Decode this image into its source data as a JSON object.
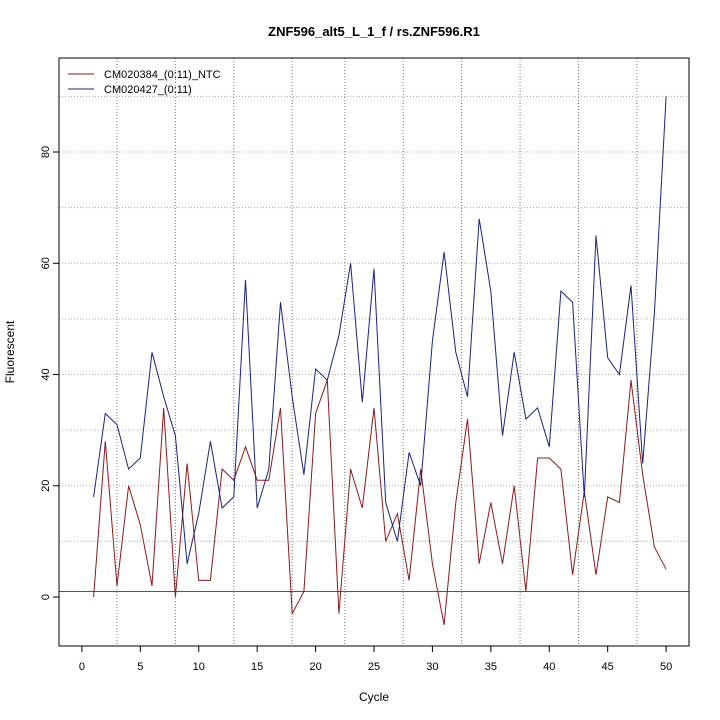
{
  "chart_data": {
    "type": "line",
    "title": "ZNF596_alt5_L_1_f / rs.ZNF596.R1",
    "xlabel": "Cycle",
    "ylabel": "Fluorescent",
    "xlim": [
      -1.96,
      51.96
    ],
    "ylim": [
      -8.8,
      96.9
    ],
    "x_ticks": [
      0,
      5,
      10,
      15,
      20,
      25,
      30,
      35,
      40,
      45,
      50
    ],
    "y_ticks": [
      0,
      20,
      40,
      60,
      80
    ],
    "h_gridlines": [
      10,
      20,
      30,
      40,
      50,
      60,
      70,
      80,
      90
    ],
    "v_gridlines": [
      3,
      8,
      13,
      18,
      22.5,
      27.5,
      32.5,
      37.5,
      42.5,
      47.5
    ],
    "threshold": {
      "value": 1,
      "color": "#cc2222"
    },
    "legend_position": "top-left",
    "series": [
      {
        "name": "CM020384_(0:11)_NTC",
        "color": "#8b1a1a",
        "x": [
          1,
          2,
          3,
          4,
          5,
          6,
          7,
          8,
          9,
          10,
          11,
          12,
          13,
          14,
          15,
          16,
          17,
          18,
          19,
          20,
          21,
          22,
          23,
          24,
          25,
          26,
          27,
          28,
          29,
          30,
          31,
          32,
          33,
          34,
          35,
          36,
          37,
          38,
          39,
          40,
          41,
          42,
          43,
          44,
          45,
          46,
          47,
          48,
          49,
          50
        ],
        "values": [
          0,
          28,
          2,
          20,
          13,
          2,
          34,
          0,
          24,
          3,
          3,
          23,
          21,
          27,
          21,
          21,
          34,
          -3,
          1,
          33,
          39,
          -3,
          23,
          16,
          34,
          10,
          15,
          3,
          23,
          6,
          -5,
          17,
          32,
          6,
          17,
          6,
          20,
          1,
          25,
          25,
          23,
          4,
          19,
          4,
          18,
          17,
          39,
          22,
          9,
          5
        ]
      },
      {
        "name": "CM020427_(0:11)",
        "color": "#1a237e",
        "x": [
          1,
          2,
          3,
          4,
          5,
          6,
          7,
          8,
          9,
          10,
          11,
          12,
          13,
          14,
          15,
          16,
          17,
          18,
          19,
          20,
          21,
          22,
          23,
          24,
          25,
          26,
          27,
          28,
          29,
          30,
          31,
          32,
          33,
          34,
          35,
          36,
          37,
          38,
          39,
          40,
          41,
          42,
          43,
          44,
          45,
          46,
          47,
          48,
          49,
          50
        ],
        "values": [
          18,
          33,
          31,
          23,
          25,
          44,
          36,
          29,
          6,
          15,
          28,
          16,
          18,
          57,
          16,
          23,
          53,
          36,
          22,
          41,
          39,
          47,
          60,
          35,
          59,
          17,
          10,
          26,
          20,
          46,
          62,
          44,
          36,
          68,
          55,
          29,
          44,
          32,
          34,
          27,
          55,
          53,
          18,
          65,
          43,
          40,
          56,
          24,
          51,
          90
        ]
      }
    ]
  }
}
